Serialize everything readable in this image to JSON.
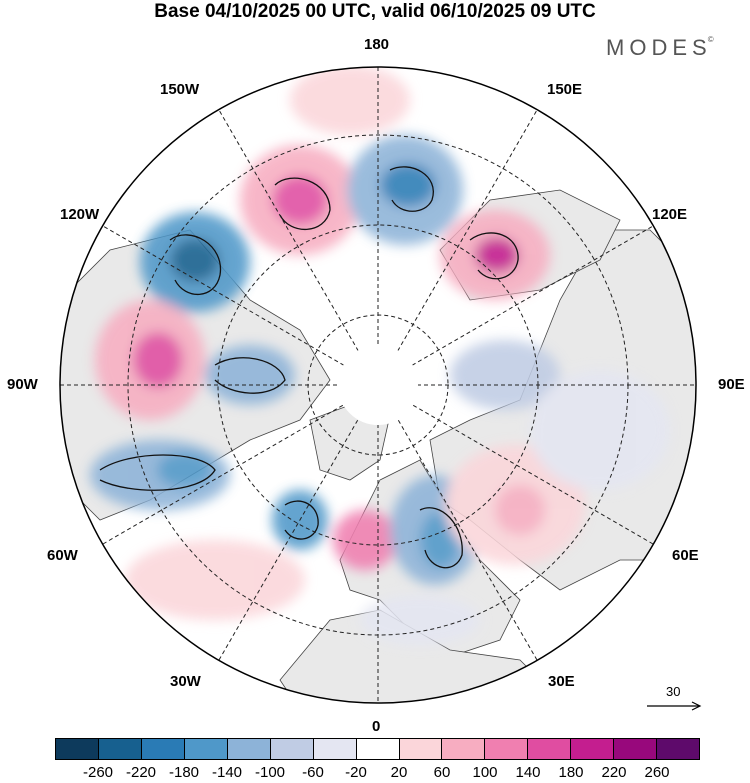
{
  "title": "Base 04/10/2025 00 UTC, valid 06/10/2025 09 UTC",
  "brand": "MODES",
  "brand_mark": "©",
  "longitude_labels": {
    "n180": "180",
    "w150": "150W",
    "e150": "150E",
    "w120": "120W",
    "e120": "120E",
    "w90": "90W",
    "e90": "90E",
    "w60": "60W",
    "e60": "60E",
    "w30": "30W",
    "e30": "30E",
    "s0": "0"
  },
  "reference_vector": "30",
  "colorbar": {
    "colors": [
      "#0d3a5c",
      "#17608f",
      "#2a7bb5",
      "#4f98c9",
      "#8db3d8",
      "#c0cce4",
      "#e4e6f2",
      "#ffffff",
      "#fbd6da",
      "#f7adc1",
      "#f07fb0",
      "#e04da1",
      "#c41e8f",
      "#98087c",
      "#5e0a6b"
    ],
    "ticks": [
      "-260",
      "-220",
      "-180",
      "-140",
      "-100",
      "-60",
      "-20",
      "20",
      "60",
      "100",
      "140",
      "180",
      "220",
      "260"
    ]
  },
  "anomaly_centers": [
    {
      "lon": "130W",
      "value": -200
    },
    {
      "lon": "160W",
      "value": 150
    },
    {
      "lon": "170E",
      "value": -180
    },
    {
      "lon": "140E",
      "value": 170
    },
    {
      "lon": "100W",
      "value": 130
    },
    {
      "lon": "95W",
      "value": -130
    },
    {
      "lon": "75W",
      "value": -160
    },
    {
      "lon": "45W",
      "value": -120
    },
    {
      "lon": "15W",
      "value": 140
    },
    {
      "lon": "25E",
      "value": -150
    },
    {
      "lon": "55E",
      "value": 100
    },
    {
      "lon": "90E",
      "value": -60
    }
  ]
}
